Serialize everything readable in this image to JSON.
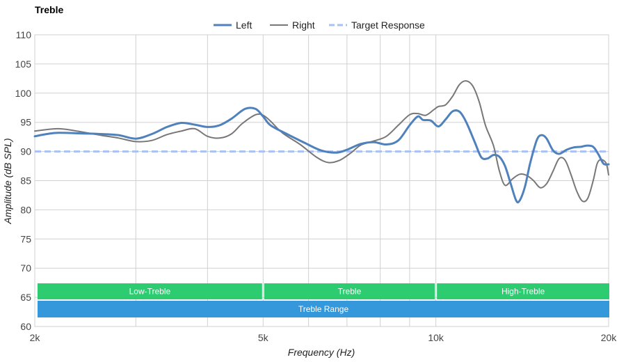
{
  "chart_data": {
    "type": "line",
    "title": "Treble",
    "xlabel": "Frequency (Hz)",
    "ylabel": "Amplitude (dB SPL)",
    "x_scale": "log",
    "xlim": [
      2000,
      20000
    ],
    "ylim": [
      60,
      110
    ],
    "x_ticks": [
      {
        "value": 2000,
        "label": "2k"
      },
      {
        "value": 5000,
        "label": "5k"
      },
      {
        "value": 10000,
        "label": "10k"
      },
      {
        "value": 20000,
        "label": "20k"
      }
    ],
    "x_minor_gridlines": [
      3000,
      4000,
      6000,
      7000,
      8000,
      9000
    ],
    "y_ticks": [
      60,
      65,
      70,
      75,
      80,
      85,
      90,
      95,
      100,
      105,
      110
    ],
    "grid": true,
    "legend_position": "top-center",
    "series": [
      {
        "name": "Left",
        "color": "#4f81bd",
        "style": "solid",
        "points": [
          [
            2000,
            92.6
          ],
          [
            2100,
            93.0
          ],
          [
            2200,
            93.2
          ],
          [
            2400,
            93.1
          ],
          [
            2600,
            93.0
          ],
          [
            2800,
            92.8
          ],
          [
            3000,
            92.2
          ],
          [
            3200,
            93.0
          ],
          [
            3400,
            94.2
          ],
          [
            3600,
            94.9
          ],
          [
            3800,
            94.6
          ],
          [
            4000,
            94.2
          ],
          [
            4200,
            94.5
          ],
          [
            4400,
            95.6
          ],
          [
            4650,
            97.3
          ],
          [
            4850,
            97.3
          ],
          [
            5000,
            96.0
          ],
          [
            5150,
            94.5
          ],
          [
            5500,
            93.0
          ],
          [
            5900,
            91.5
          ],
          [
            6300,
            90.2
          ],
          [
            6700,
            89.8
          ],
          [
            7000,
            90.3
          ],
          [
            7400,
            91.3
          ],
          [
            7800,
            91.6
          ],
          [
            8200,
            91.2
          ],
          [
            8600,
            91.9
          ],
          [
            9000,
            94.5
          ],
          [
            9300,
            96.0
          ],
          [
            9500,
            95.4
          ],
          [
            9800,
            95.3
          ],
          [
            10100,
            94.3
          ],
          [
            10400,
            95.5
          ],
          [
            10700,
            96.9
          ],
          [
            11000,
            96.8
          ],
          [
            11300,
            95.0
          ],
          [
            11700,
            91.5
          ],
          [
            12000,
            89.0
          ],
          [
            12300,
            88.8
          ],
          [
            12600,
            89.4
          ],
          [
            12900,
            89.1
          ],
          [
            13200,
            87.5
          ],
          [
            13500,
            84.5
          ],
          [
            13800,
            81.6
          ],
          [
            14000,
            81.6
          ],
          [
            14300,
            84.0
          ],
          [
            14600,
            88.0
          ],
          [
            15000,
            92.0
          ],
          [
            15300,
            92.8
          ],
          [
            15600,
            92.2
          ],
          [
            16000,
            90.2
          ],
          [
            16400,
            89.6
          ],
          [
            16900,
            90.3
          ],
          [
            17400,
            90.7
          ],
          [
            17900,
            90.8
          ],
          [
            18300,
            91.0
          ],
          [
            18800,
            90.8
          ],
          [
            19200,
            89.5
          ],
          [
            19600,
            87.9
          ],
          [
            20000,
            87.8
          ]
        ]
      },
      {
        "name": "Right",
        "color": "#777777",
        "style": "solid",
        "points": [
          [
            2000,
            93.5
          ],
          [
            2200,
            93.9
          ],
          [
            2400,
            93.4
          ],
          [
            2600,
            92.8
          ],
          [
            2800,
            92.3
          ],
          [
            3000,
            91.7
          ],
          [
            3200,
            91.9
          ],
          [
            3400,
            92.9
          ],
          [
            3600,
            93.5
          ],
          [
            3800,
            93.9
          ],
          [
            4000,
            92.6
          ],
          [
            4200,
            92.3
          ],
          [
            4400,
            93.0
          ],
          [
            4600,
            94.8
          ],
          [
            4850,
            96.3
          ],
          [
            5000,
            96.2
          ],
          [
            5150,
            95.2
          ],
          [
            5400,
            93.2
          ],
          [
            5800,
            91.2
          ],
          [
            6200,
            89.0
          ],
          [
            6500,
            88.1
          ],
          [
            6800,
            88.5
          ],
          [
            7100,
            89.7
          ],
          [
            7400,
            91.1
          ],
          [
            7800,
            91.8
          ],
          [
            8200,
            92.6
          ],
          [
            8600,
            94.5
          ],
          [
            9000,
            96.3
          ],
          [
            9300,
            96.5
          ],
          [
            9600,
            96.2
          ],
          [
            9900,
            97.1
          ],
          [
            10100,
            97.7
          ],
          [
            10400,
            98.0
          ],
          [
            10700,
            99.5
          ],
          [
            11000,
            101.5
          ],
          [
            11300,
            102.1
          ],
          [
            11600,
            101.2
          ],
          [
            11900,
            98.5
          ],
          [
            12200,
            94.5
          ],
          [
            12600,
            91.0
          ],
          [
            12900,
            86.7
          ],
          [
            13200,
            84.2
          ],
          [
            13600,
            85.3
          ],
          [
            14000,
            86.1
          ],
          [
            14400,
            85.9
          ],
          [
            14800,
            85.0
          ],
          [
            15200,
            83.8
          ],
          [
            15600,
            84.5
          ],
          [
            16000,
            86.6
          ],
          [
            16400,
            88.8
          ],
          [
            16800,
            88.5
          ],
          [
            17200,
            86.0
          ],
          [
            17600,
            83.2
          ],
          [
            18000,
            81.5
          ],
          [
            18400,
            82.0
          ],
          [
            18800,
            85.0
          ],
          [
            19100,
            87.9
          ],
          [
            19400,
            88.6
          ],
          [
            19800,
            88.0
          ],
          [
            20000,
            86.0
          ]
        ]
      },
      {
        "name": "Target Response",
        "color": "#a9c1f5",
        "style": "dashed",
        "points": [
          [
            2000,
            90
          ],
          [
            20000,
            90
          ]
        ]
      }
    ],
    "bands": [
      {
        "label": "Low-Treble",
        "from": 2000,
        "to": 5000,
        "row": 1,
        "color": "#2ecc71"
      },
      {
        "label": "Treble",
        "from": 5000,
        "to": 10000,
        "row": 1,
        "color": "#2ecc71"
      },
      {
        "label": "High-Treble",
        "from": 10000,
        "to": 20000,
        "row": 1,
        "color": "#2ecc71"
      },
      {
        "label": "Treble Range",
        "from": 2000,
        "to": 20000,
        "row": 2,
        "color": "#3498db"
      }
    ]
  }
}
